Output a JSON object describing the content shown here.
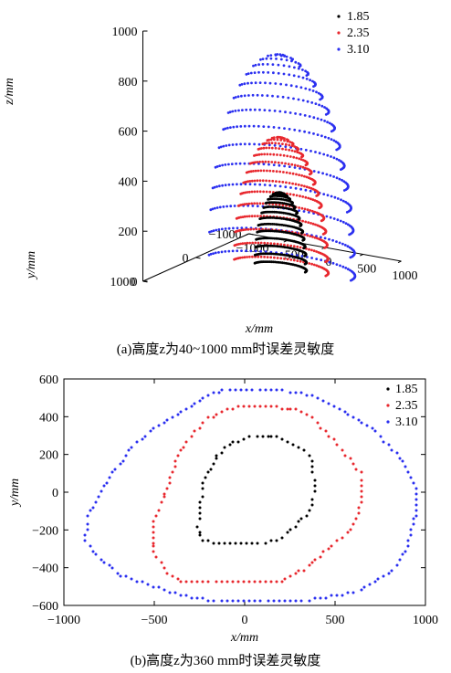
{
  "colors": {
    "s1": "#000000",
    "s2": "#e8282e",
    "s3": "#2a2ff0",
    "axis": "#000000"
  },
  "captions": {
    "a": "(a)高度z为40~1000 mm时误差灵敏度",
    "b": "(b)高度z为360 mm时误差灵敏度"
  },
  "chart_data": [
    {
      "type": "scatter3d",
      "title": "",
      "xlabel": "x/mm",
      "ylabel": "y/mm",
      "zlabel": "z/mm",
      "xlim": [
        -1000,
        1000
      ],
      "ylim": [
        -1000,
        1000
      ],
      "zlim": [
        0,
        1000
      ],
      "xticks": [
        "−1000",
        "−500",
        "0",
        "500",
        "1000"
      ],
      "yticks": [
        "−1000",
        "0",
        "1000"
      ],
      "zticks": [
        "0",
        "200",
        "400",
        "600",
        "800",
        "1000"
      ],
      "legend_position": "top-right",
      "series": [
        {
          "name": "1.85",
          "color": "#000000",
          "shape": "dome",
          "radius_x": 330,
          "radius_y": 330,
          "height": 300,
          "center_x": 0,
          "center_y": 0
        },
        {
          "name": "2.35",
          "color": "#e8282e",
          "shape": "dome",
          "radius_x": 600,
          "radius_y": 600,
          "height": 520,
          "center_x": 0,
          "center_y": 0
        },
        {
          "name": "3.10",
          "color": "#2a2ff0",
          "shape": "dome",
          "radius_x": 930,
          "radius_y": 930,
          "height": 850,
          "center_x": 0,
          "center_y": 0
        }
      ]
    },
    {
      "type": "scatter",
      "title": "",
      "xlabel": "x/mm",
      "ylabel": "y/mm",
      "xlim": [
        -1000,
        1000
      ],
      "ylim": [
        -600,
        600
      ],
      "xticks": [
        "−1000",
        "−500",
        "0",
        "500",
        "1000"
      ],
      "yticks": [
        "−600",
        "−400",
        "−200",
        "0",
        "200",
        "400",
        "600"
      ],
      "legend_position": "top-right",
      "series": [
        {
          "name": "1.85",
          "color": "#000000",
          "outline": [
            [
              30,
              300
            ],
            [
              100,
              300
            ],
            [
              180,
              300
            ],
            [
              270,
              250
            ],
            [
              360,
              200
            ],
            [
              380,
              100
            ],
            [
              390,
              0
            ],
            [
              360,
              -100
            ],
            [
              260,
              -200
            ],
            [
              180,
              -260
            ],
            [
              40,
              -270
            ],
            [
              -140,
              -270
            ],
            [
              -230,
              -260
            ],
            [
              -260,
              -180
            ],
            [
              -240,
              -50
            ],
            [
              -220,
              80
            ],
            [
              -150,
              200
            ],
            [
              -60,
              260
            ]
          ]
        },
        {
          "name": "2.35",
          "color": "#e8282e",
          "outline": [
            [
              170,
              450
            ],
            [
              290,
              440
            ],
            [
              380,
              390
            ],
            [
              470,
              300
            ],
            [
              560,
              200
            ],
            [
              640,
              100
            ],
            [
              650,
              -50
            ],
            [
              590,
              -200
            ],
            [
              460,
              -300
            ],
            [
              330,
              -410
            ],
            [
              200,
              -470
            ],
            [
              -70,
              -480
            ],
            [
              -320,
              -480
            ],
            [
              -430,
              -430
            ],
            [
              -500,
              -320
            ],
            [
              -510,
              -180
            ],
            [
              -450,
              -30
            ],
            [
              -380,
              160
            ],
            [
              -300,
              300
            ],
            [
              -200,
              390
            ],
            [
              -100,
              440
            ],
            [
              50,
              460
            ]
          ]
        },
        {
          "name": "3.10",
          "color": "#2a2ff0",
          "outline": [
            [
              -120,
              540
            ],
            [
              -20,
              540
            ],
            [
              180,
              540
            ],
            [
              350,
              520
            ],
            [
              500,
              460
            ],
            [
              600,
              400
            ],
            [
              700,
              340
            ],
            [
              800,
              250
            ],
            [
              890,
              140
            ],
            [
              950,
              20
            ],
            [
              950,
              -120
            ],
            [
              900,
              -280
            ],
            [
              820,
              -420
            ],
            [
              640,
              -520
            ],
            [
              450,
              -560
            ],
            [
              220,
              -580
            ],
            [
              -100,
              -580
            ],
            [
              -300,
              -560
            ],
            [
              -500,
              -500
            ],
            [
              -680,
              -440
            ],
            [
              -800,
              -360
            ],
            [
              -880,
              -260
            ],
            [
              -870,
              -130
            ],
            [
              -750,
              80
            ],
            [
              -620,
              240
            ],
            [
              -500,
              340
            ],
            [
              -350,
              430
            ],
            [
              -200,
              520
            ]
          ]
        }
      ]
    }
  ]
}
